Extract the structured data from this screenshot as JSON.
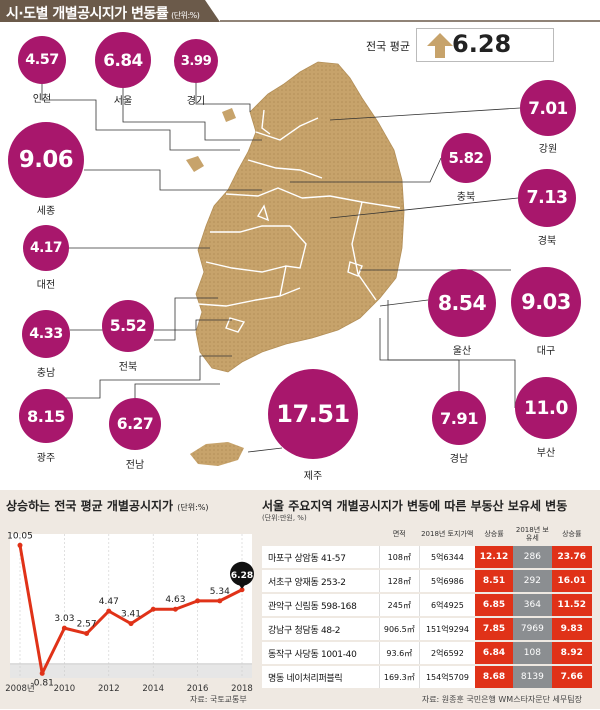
{
  "colors": {
    "header_bg": "#6b5a4a",
    "map": "#c7a36b",
    "bubble": "#a8176c",
    "line": "#e03218",
    "highlight": "#e03218",
    "gray": "#8b8e91",
    "natl_arrow": "#c7a36b"
  },
  "header": {
    "title": "시·도별 개별공시지가 변동률",
    "unit": "(단위:%)"
  },
  "national": {
    "label": "전국 평균",
    "value": "6.28"
  },
  "chart_data": [
    {
      "type": "bubble",
      "title": "시·도별 개별공시지가 변동률",
      "unit": "(단위:%)",
      "regions": [
        {
          "name": "인천",
          "value": "4.57"
        },
        {
          "name": "서울",
          "value": "6.84"
        },
        {
          "name": "경기",
          "value": "3.99"
        },
        {
          "name": "강원",
          "value": "7.01"
        },
        {
          "name": "세종",
          "value": "9.06"
        },
        {
          "name": "충북",
          "value": "5.82"
        },
        {
          "name": "경북",
          "value": "7.13"
        },
        {
          "name": "대전",
          "value": "4.17"
        },
        {
          "name": "울산",
          "value": "8.54"
        },
        {
          "name": "대구",
          "value": "9.03"
        },
        {
          "name": "충남",
          "value": "4.33"
        },
        {
          "name": "전북",
          "value": "5.52"
        },
        {
          "name": "광주",
          "value": "8.15"
        },
        {
          "name": "전남",
          "value": "6.27"
        },
        {
          "name": "제주",
          "value": "17.51"
        },
        {
          "name": "경남",
          "value": "7.91"
        },
        {
          "name": "부산",
          "value": "11.0"
        }
      ]
    },
    {
      "type": "line",
      "title": "상승하는 전국 평균 개별공시지가",
      "unit": "(단위:%)",
      "x": [
        2008,
        2009,
        2010,
        2011,
        2012,
        2013,
        2014,
        2015,
        2016,
        2017,
        2018
      ],
      "values": [
        "10.05",
        "-0.81",
        "3.03",
        "2.57",
        "4.47",
        "3.41",
        "4.63",
        "4.63",
        "5.34",
        "5.34",
        "6.28"
      ],
      "point_labels": [
        "10.05",
        "-0.81",
        "3.03",
        "2.57",
        "4.47",
        "3.41",
        "",
        "4.63",
        "",
        "5.34",
        "6.28"
      ],
      "x_ticks": [
        "2008년",
        "2010",
        "2012",
        "2014",
        "2016",
        "2018"
      ],
      "source": "자료: 국토교통부"
    },
    {
      "type": "table",
      "title": "서울 주요지역 개별공시지가 변동에 따른 부동산 보유세 변동",
      "unit": "(단위:만원, %)",
      "columns": [
        "면적",
        "2018년 토지가액",
        "상승률",
        "2018년 보유세",
        "상승률"
      ],
      "rows": [
        {
          "name": "마포구 상암동 41-57",
          "area": "108㎡",
          "price": "5억6344",
          "rise": "12.12",
          "tax": "286",
          "tax_rise": "23.76"
        },
        {
          "name": "서초구 양재동 253-2",
          "area": "128㎡",
          "price": "5억6986",
          "rise": "8.51",
          "tax": "292",
          "tax_rise": "16.01"
        },
        {
          "name": "관악구 신림동 598-168",
          "area": "245㎡",
          "price": "6억4925",
          "rise": "6.85",
          "tax": "364",
          "tax_rise": "11.52"
        },
        {
          "name": "강남구 청담동 48-2",
          "area": "906.5㎡",
          "price": "151억9294",
          "rise": "7.85",
          "tax": "7969",
          "tax_rise": "9.83"
        },
        {
          "name": "동작구 사당동 1001-40",
          "area": "93.6㎡",
          "price": "2억6592",
          "rise": "6.84",
          "tax": "108",
          "tax_rise": "8.92"
        },
        {
          "name": "명동 네이처리퍼블릭",
          "area": "169.3㎡",
          "price": "154억5709",
          "rise": "8.68",
          "tax": "8139",
          "tax_rise": "7.66"
        }
      ],
      "source": "자료: 원종훈 국민은행 WM스타자문단 세무팀장"
    }
  ]
}
